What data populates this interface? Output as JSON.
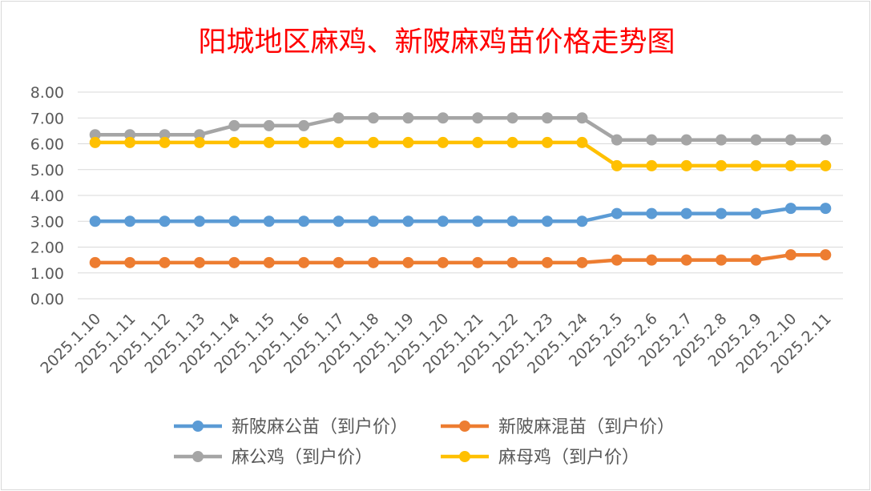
{
  "chart_data": {
    "type": "line",
    "title": "阳城地区麻鸡、新陂麻鸡苗价格走势图",
    "xlabel": "",
    "ylabel": "",
    "ylim": [
      0,
      8
    ],
    "yticks": [
      "0.00",
      "1.00",
      "2.00",
      "3.00",
      "4.00",
      "5.00",
      "6.00",
      "7.00",
      "8.00"
    ],
    "grid": true,
    "legend_position": "bottom",
    "categories": [
      "2025.1.10",
      "2025.1.11",
      "2025.1.12",
      "2025.1.13",
      "2025.1.14",
      "2025.1.15",
      "2025.1.16",
      "2025.1.17",
      "2025.1.18",
      "2025.1.19",
      "2025.1.20",
      "2025.1.21",
      "2025.1.22",
      "2025.1.23",
      "2025.1.24",
      "2025.2.5",
      "2025.2.6",
      "2025.2.7",
      "2025.2.8",
      "2025.2.9",
      "2025.2.10",
      "2025.2.11"
    ],
    "series": [
      {
        "name": "新陂麻公苗（到户价）",
        "color": "#5b9bd5",
        "values": [
          3.0,
          3.0,
          3.0,
          3.0,
          3.0,
          3.0,
          3.0,
          3.0,
          3.0,
          3.0,
          3.0,
          3.0,
          3.0,
          3.0,
          3.0,
          3.3,
          3.3,
          3.3,
          3.3,
          3.3,
          3.5,
          3.5
        ]
      },
      {
        "name": "新陂麻混苗（到户价）",
        "color": "#ed7d31",
        "values": [
          1.4,
          1.4,
          1.4,
          1.4,
          1.4,
          1.4,
          1.4,
          1.4,
          1.4,
          1.4,
          1.4,
          1.4,
          1.4,
          1.4,
          1.4,
          1.5,
          1.5,
          1.5,
          1.5,
          1.5,
          1.7,
          1.7
        ]
      },
      {
        "name": "麻公鸡（到户价）",
        "color": "#a5a5a5",
        "values": [
          6.35,
          6.35,
          6.35,
          6.35,
          6.7,
          6.7,
          6.7,
          7.0,
          7.0,
          7.0,
          7.0,
          7.0,
          7.0,
          7.0,
          7.0,
          6.15,
          6.15,
          6.15,
          6.15,
          6.15,
          6.15,
          6.15
        ]
      },
      {
        "name": "麻母鸡（到户价）",
        "color": "#ffc000",
        "values": [
          6.05,
          6.05,
          6.05,
          6.05,
          6.05,
          6.05,
          6.05,
          6.05,
          6.05,
          6.05,
          6.05,
          6.05,
          6.05,
          6.05,
          6.05,
          5.15,
          5.15,
          5.15,
          5.15,
          5.15,
          5.15,
          5.15
        ]
      }
    ],
    "colors": {
      "title": "#ff0000",
      "grid": "#d9d9d9",
      "axis_text": "#595959"
    }
  }
}
